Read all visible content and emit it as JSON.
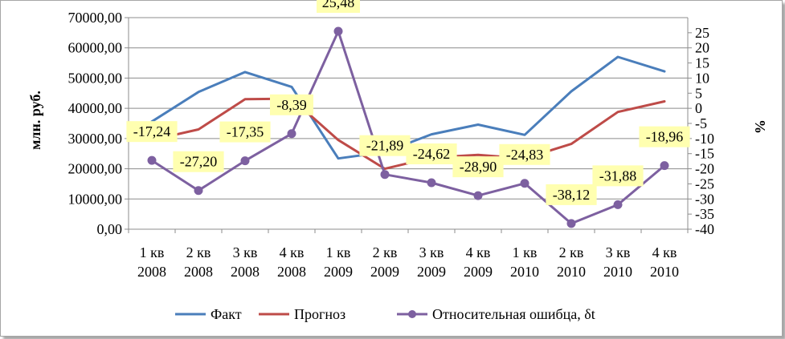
{
  "chart_data": {
    "type": "line",
    "title": "",
    "categories": [
      [
        "1 кв",
        "2008"
      ],
      [
        "2 кв",
        "2008"
      ],
      [
        "3 кв",
        "2008"
      ],
      [
        "4 кв",
        "2008"
      ],
      [
        "1 кв",
        "2009"
      ],
      [
        "2 кв",
        "2009"
      ],
      [
        "3 кв",
        "2009"
      ],
      [
        "4 кв",
        "2009"
      ],
      [
        "1 кв",
        "2010"
      ],
      [
        "2 кв",
        "2010"
      ],
      [
        "3 кв",
        "2010"
      ],
      [
        "4 кв",
        "2010"
      ]
    ],
    "ylabel_left": "млн. руб.",
    "ylabel_right": "%",
    "ylim_left": [
      0,
      70000
    ],
    "ylim_right": [
      -40,
      30
    ],
    "yticks_left": [
      "0,00",
      "10000,00",
      "20000,00",
      "30000,00",
      "40000,00",
      "50000,00",
      "60000,00",
      "70000,00"
    ],
    "yticks_right": [
      "-40",
      "-35",
      "-30",
      "-25",
      "-20",
      "-15",
      "-10",
      "-5",
      "0",
      "5",
      "10",
      "15",
      "20",
      "25"
    ],
    "grid": true,
    "legend_position": "bottom",
    "series": [
      {
        "name": "Факт",
        "axis": "left",
        "color": "#4a7ebb",
        "values": [
          35600,
          45400,
          52000,
          47100,
          23400,
          25500,
          31400,
          34600,
          31200,
          45600,
          57000,
          52200
        ]
      },
      {
        "name": "Прогноз",
        "axis": "left",
        "color": "#be4b48",
        "values": [
          29500,
          33000,
          43000,
          43200,
          29500,
          20000,
          23700,
          24600,
          23400,
          28200,
          38800,
          42300
        ]
      },
      {
        "name": "Относительная ошибца, δt",
        "axis": "right",
        "color": "#7d60a0",
        "marker": "circle",
        "values": [
          -17.24,
          -27.2,
          -17.35,
          -8.39,
          25.48,
          -21.89,
          -24.62,
          -28.9,
          -24.83,
          -38.12,
          -31.88,
          -18.96
        ],
        "labels": [
          "-17,24",
          "-27,20",
          "-17,35",
          "-8,39",
          "25,48",
          "-21,89",
          "-24,62",
          "-28,90",
          "-24,83",
          "-38,12",
          "-31,88",
          "-18,96"
        ],
        "label_background": "#ffffb0"
      }
    ]
  }
}
